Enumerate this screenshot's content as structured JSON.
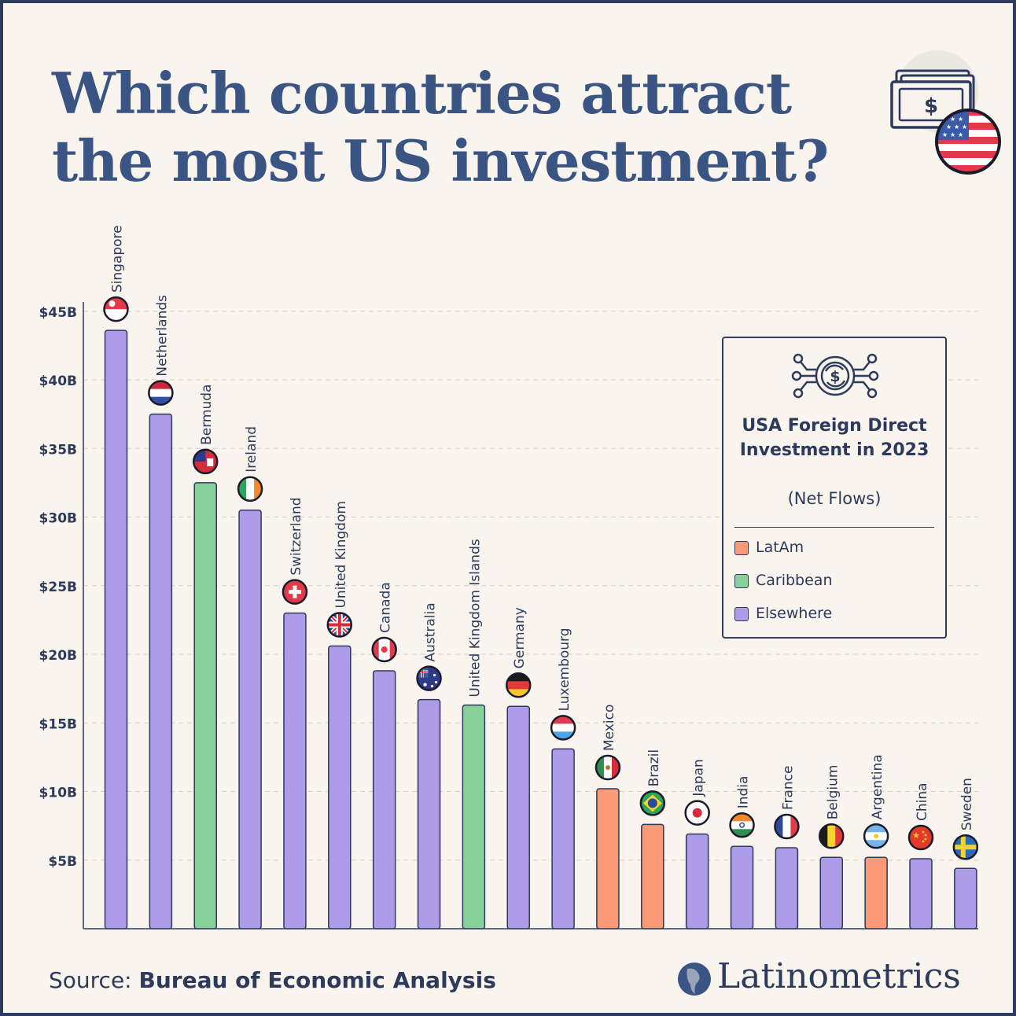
{
  "title": "Which countries attract the most US investment?",
  "source_prefix": "Source:",
  "source_name": "Bureau of Economic Analysis",
  "brand": "Latinometrics",
  "colors": {
    "LatAm": "#fc9a78",
    "Caribbean": "#88d19a",
    "Elsewhere": "#ae9ce8",
    "text": "#2c3a5c",
    "title": "#3a5583",
    "background": "#faf4ee"
  },
  "legend": {
    "title": "USA Foreign Direct Investment in 2023",
    "subtitle": "(Net Flows)",
    "items": [
      {
        "label": "LatAm",
        "color": "#fc9a78"
      },
      {
        "label": "Caribbean",
        "color": "#88d19a"
      },
      {
        "label": "Elsewhere",
        "color": "#ae9ce8"
      }
    ]
  },
  "chart_data": {
    "type": "bar",
    "title": "Which countries attract the most US investment?",
    "ylabel": "",
    "xlabel": "",
    "ylim": [
      0,
      45
    ],
    "yticks": [
      5,
      10,
      15,
      20,
      25,
      30,
      35,
      40,
      45
    ],
    "ytick_labels": [
      "$5B",
      "$10B",
      "$15B",
      "$20B",
      "$25B",
      "$30B",
      "$35B",
      "$40B",
      "$45B"
    ],
    "grid": "horizontal dashed",
    "legend_position": "top-right",
    "categories": [
      "Singapore",
      "Netherlands",
      "Bermuda",
      "Ireland",
      "Switzerland",
      "United Kingdom",
      "Canada",
      "Australia",
      "United Kingdom Islands",
      "Germany",
      "Luxembourg",
      "Mexico",
      "Brazil",
      "Japan",
      "India",
      "France",
      "Belgium",
      "Argentina",
      "China",
      "Sweden"
    ],
    "values": [
      43.6,
      37.5,
      32.5,
      30.5,
      23.0,
      20.6,
      18.8,
      16.7,
      16.3,
      16.2,
      13.1,
      10.2,
      7.6,
      6.9,
      6.0,
      5.9,
      5.2,
      5.2,
      5.1,
      4.4
    ],
    "regions": [
      "Elsewhere",
      "Elsewhere",
      "Caribbean",
      "Elsewhere",
      "Elsewhere",
      "Elsewhere",
      "Elsewhere",
      "Elsewhere",
      "Caribbean",
      "Elsewhere",
      "Elsewhere",
      "LatAm",
      "LatAm",
      "Elsewhere",
      "Elsewhere",
      "Elsewhere",
      "Elsewhere",
      "LatAm",
      "Elsewhere",
      "Elsewhere"
    ],
    "flags": [
      "singapore-flag-icon",
      "netherlands-flag-icon",
      "bermuda-flag-icon",
      "ireland-flag-icon",
      "switzerland-flag-icon",
      "united-kingdom-flag-icon",
      "canada-flag-icon",
      "australia-flag-icon",
      "",
      "germany-flag-icon",
      "luxembourg-flag-icon",
      "mexico-flag-icon",
      "brazil-flag-icon",
      "japan-flag-icon",
      "india-flag-icon",
      "france-flag-icon",
      "belgium-flag-icon",
      "argentina-flag-icon",
      "china-flag-icon",
      "sweden-flag-icon"
    ]
  }
}
